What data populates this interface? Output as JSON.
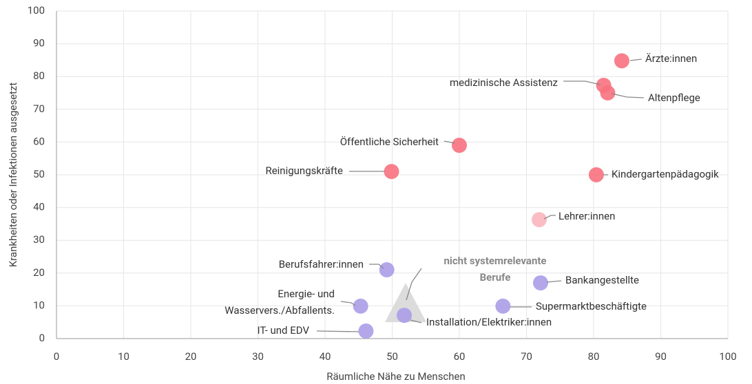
{
  "chart_data": {
    "type": "scatter",
    "xlabel": "Räumliche Nähe zu Menschen",
    "ylabel": "Krankheiten oder Infektionen ausgesetzt",
    "xlim": [
      0,
      100
    ],
    "xticks": [
      0,
      10,
      20,
      30,
      40,
      50,
      60,
      70,
      80,
      90,
      100
    ],
    "ylim": [
      0,
      100
    ],
    "yticks": [
      0,
      10,
      20,
      30,
      40,
      50,
      60,
      70,
      80,
      90,
      100
    ],
    "grid": true,
    "points": [
      {
        "label": "Ärzte:innen",
        "x": 84.2,
        "y": 84.8,
        "color": "#f7717e"
      },
      {
        "label": "medizinische Assistenz",
        "x": 81.5,
        "y": 77.3,
        "color": "#f7717e"
      },
      {
        "label": "Altenpflege",
        "x": 82.1,
        "y": 75.0,
        "color": "#f7717e"
      },
      {
        "label": "Öffentliche Sicherheit",
        "x": 60.0,
        "y": 59.0,
        "color": "#f7717e"
      },
      {
        "label": "Reinigungskräfte",
        "x": 49.9,
        "y": 51.0,
        "color": "#f7717e"
      },
      {
        "label": "Kindergartenpädagogik",
        "x": 80.4,
        "y": 50.0,
        "color": "#f7717e"
      },
      {
        "label": "Lehrer:innen",
        "x": 71.9,
        "y": 36.3,
        "color": "#f9b6bd"
      },
      {
        "label": "Berufsfahrer:innen",
        "x": 49.2,
        "y": 21.0,
        "color": "#ab9de8"
      },
      {
        "label": "Bankangestellte",
        "x": 72.1,
        "y": 17.0,
        "color": "#ab9de8"
      },
      {
        "label": "Energie- und\nWasservers./Abfallents.",
        "x": 45.3,
        "y": 9.9,
        "color": "#ab9de8"
      },
      {
        "label": "Supermarktbeschäftigte",
        "x": 66.5,
        "y": 9.9,
        "color": "#ab9de8"
      },
      {
        "label": "Installation/Elektriker:innen",
        "x": 51.8,
        "y": 7.1,
        "color": "#ab9de8"
      },
      {
        "label": "IT- und EDV",
        "x": 46.1,
        "y": 2.3,
        "color": "#ab9de8"
      }
    ],
    "reference": {
      "label": "nicht systemrelevante\nBerufe",
      "x": 52,
      "y": 9,
      "color": "#dcdcdc"
    }
  }
}
